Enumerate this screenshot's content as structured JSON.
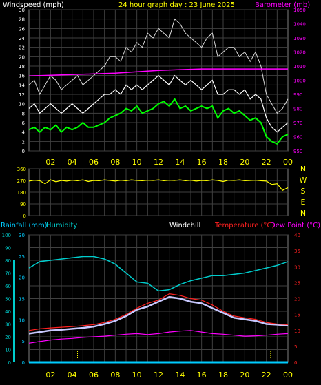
{
  "colors": {
    "background": "#000000",
    "grid": "#404040",
    "axis_text": "#ffffff",
    "xtick_text": "#ffff00",
    "windspeed": "#ffffff",
    "windgust": "#dcdcdc",
    "windavg": "#00ff00",
    "barometer": "#ff00ff",
    "direction": "#ffff00",
    "humidity": "#00cccc",
    "rainfall": "#00ccff",
    "windchill": "#c8c8ff",
    "temperature": "#ff2020",
    "dewpoint": "#ff00ff"
  },
  "chart_data": [
    {
      "type": "line",
      "panel": "wind_barometer",
      "title": "24 hour graph day : 23 June 2025",
      "left_axis_label": "Windspeed (mph)",
      "right_axis_label": "Barometer (mb)",
      "x_tick_labels": [
        "02",
        "04",
        "06",
        "08",
        "10",
        "12",
        "14",
        "16",
        "18",
        "20",
        "22",
        "00"
      ],
      "x_range_hours": [
        0,
        24
      ],
      "left_ylim": [
        0,
        30
      ],
      "left_ticks": [
        "0",
        "2",
        "4",
        "6",
        "8",
        "10",
        "12",
        "14",
        "16",
        "18",
        "20",
        "22",
        "24",
        "26",
        "28",
        "30"
      ],
      "right_ylim": [
        950,
        1050
      ],
      "right_ticks": [
        "950",
        "960",
        "970",
        "980",
        "990",
        "1000",
        "1010",
        "1020",
        "1030",
        "1040",
        "1050"
      ],
      "grid": true,
      "series": [
        {
          "key": "gust",
          "axis": "left",
          "hours": [
            0,
            0.5,
            1,
            1.5,
            2,
            2.5,
            3,
            3.5,
            4,
            4.5,
            5,
            5.5,
            6,
            6.5,
            7,
            7.5,
            8,
            8.5,
            9,
            9.5,
            10,
            10.5,
            11,
            11.5,
            12,
            12.5,
            13,
            13.5,
            14,
            14.5,
            15,
            15.5,
            16,
            16.5,
            17,
            17.5,
            18,
            18.5,
            19,
            19.5,
            20,
            20.5,
            21,
            21.5,
            22,
            22.5,
            23,
            23.5,
            24
          ],
          "values": [
            14,
            15,
            12,
            14,
            16,
            15,
            13,
            14,
            15,
            16,
            14,
            15,
            16,
            17,
            18,
            20,
            20,
            19,
            22,
            21,
            23,
            22,
            25,
            24,
            26,
            25,
            24,
            28,
            27,
            25,
            24,
            23,
            22,
            24,
            25,
            20,
            21,
            22,
            22,
            20,
            21,
            19,
            21,
            18,
            12,
            10,
            8,
            9,
            11
          ]
        },
        {
          "key": "speed",
          "axis": "left",
          "hours": [
            0,
            0.5,
            1,
            1.5,
            2,
            2.5,
            3,
            3.5,
            4,
            4.5,
            5,
            5.5,
            6,
            6.5,
            7,
            7.5,
            8,
            8.5,
            9,
            9.5,
            10,
            10.5,
            11,
            11.5,
            12,
            12.5,
            13,
            13.5,
            14,
            14.5,
            15,
            15.5,
            16,
            16.5,
            17,
            17.5,
            18,
            18.5,
            19,
            19.5,
            20,
            20.5,
            21,
            21.5,
            22,
            22.5,
            23,
            23.5,
            24
          ],
          "values": [
            9,
            10,
            8,
            9,
            10,
            9,
            8,
            9,
            10,
            9,
            8,
            9,
            10,
            11,
            12,
            12,
            13,
            12,
            14,
            13,
            14,
            13,
            14,
            15,
            16,
            15,
            14,
            16,
            15,
            14,
            15,
            14,
            13,
            14,
            15,
            12,
            12,
            13,
            13,
            12,
            13,
            11,
            12,
            11,
            7,
            5,
            4,
            5,
            6
          ]
        },
        {
          "key": "average",
          "axis": "left",
          "hours": [
            0,
            0.5,
            1,
            1.5,
            2,
            2.5,
            3,
            3.5,
            4,
            4.5,
            5,
            5.5,
            6,
            6.5,
            7,
            7.5,
            8,
            8.5,
            9,
            9.5,
            10,
            10.5,
            11,
            11.5,
            12,
            12.5,
            13,
            13.5,
            14,
            14.5,
            15,
            15.5,
            16,
            16.5,
            17,
            17.5,
            18,
            18.5,
            19,
            19.5,
            20,
            20.5,
            21,
            21.5,
            22,
            22.5,
            23,
            23.5,
            24
          ],
          "values": [
            4.5,
            5,
            4,
            5,
            4.5,
            5.5,
            4,
            5,
            4.5,
            5,
            6,
            5,
            5,
            5.5,
            6,
            7,
            7.5,
            8,
            9,
            8.5,
            9.5,
            8,
            8.5,
            9,
            10,
            10.5,
            9.5,
            11,
            9,
            9.5,
            8.5,
            9,
            9.5,
            9,
            9.5,
            7,
            8.5,
            9,
            8,
            8.5,
            7.5,
            6.5,
            7,
            6,
            3,
            2,
            1.5,
            3,
            3.5
          ]
        },
        {
          "key": "barometer",
          "axis": "right",
          "hours": [
            0,
            2,
            4,
            6,
            8,
            10,
            12,
            14,
            16,
            18,
            20,
            22,
            24
          ],
          "values": [
            1003,
            1003.5,
            1004,
            1004.5,
            1005,
            1006,
            1007,
            1007.5,
            1008,
            1008,
            1008,
            1008,
            1008
          ]
        }
      ]
    },
    {
      "type": "line",
      "panel": "wind_direction",
      "left_ticks": [
        "0",
        "90",
        "180",
        "270",
        "360"
      ],
      "left_ylim": [
        0,
        360
      ],
      "right_labels": [
        "N",
        "W",
        "S",
        "E",
        "N"
      ],
      "x_range_hours": [
        0,
        24
      ],
      "grid": true,
      "series": [
        {
          "key": "direction",
          "hours": [
            0,
            0.5,
            1,
            1.5,
            2,
            2.5,
            3,
            3.5,
            4,
            4.5,
            5,
            5.5,
            6,
            6.5,
            7,
            7.5,
            8,
            8.5,
            9,
            9.5,
            10,
            10.5,
            11,
            11.5,
            12,
            12.5,
            13,
            13.5,
            14,
            14.5,
            15,
            15.5,
            16,
            16.5,
            17,
            17.5,
            18,
            18.5,
            19,
            19.5,
            20,
            20.5,
            21,
            21.5,
            22,
            22.5,
            23,
            23.5,
            24
          ],
          "values": [
            265,
            272,
            268,
            245,
            275,
            260,
            270,
            265,
            272,
            268,
            275,
            262,
            270,
            268,
            275,
            270,
            265,
            272,
            268,
            275,
            270,
            268,
            272,
            270,
            275,
            268,
            272,
            270,
            275,
            268,
            272,
            265,
            270,
            268,
            275,
            270,
            262,
            272,
            270,
            275,
            268,
            270,
            272,
            268,
            265,
            240,
            245,
            195,
            215
          ]
        }
      ]
    },
    {
      "type": "line",
      "panel": "temperature_humidity_rain",
      "labels": {
        "rainfall": "Rainfall (mm)",
        "humidity": "Humidity",
        "windchill": "Windchill",
        "temperature": "Temperature (°C)",
        "dewpoint": "Dew Point (°C)"
      },
      "x_tick_labels": [
        "02",
        "04",
        "06",
        "08",
        "10",
        "12",
        "14",
        "16",
        "18",
        "20",
        "22",
        "00"
      ],
      "x_range_hours": [
        0,
        24
      ],
      "humidity_ylim": [
        0,
        100
      ],
      "humidity_ticks": [
        "0",
        "10",
        "20",
        "30",
        "40",
        "50",
        "60",
        "70",
        "80",
        "90",
        "100"
      ],
      "rain_ylim": [
        0,
        30
      ],
      "rain_ticks": [
        "0",
        "5",
        "10",
        "15",
        "20",
        "25",
        "30"
      ],
      "temp_ylim": [
        0,
        40
      ],
      "temp_ticks": [
        "0",
        "5",
        "10",
        "15",
        "20",
        "25",
        "30",
        "35",
        "40"
      ],
      "grid": true,
      "series": [
        {
          "key": "humidity",
          "axis": "humidity",
          "hours": [
            0,
            1,
            2,
            3,
            4,
            5,
            6,
            7,
            8,
            9,
            10,
            11,
            12,
            13,
            14,
            15,
            16,
            17,
            18,
            19,
            20,
            21,
            22,
            23,
            24
          ],
          "values": [
            74,
            79,
            80,
            81,
            82,
            83,
            83,
            81,
            77,
            70,
            63,
            62,
            56,
            57,
            61,
            64,
            66,
            68,
            68,
            69,
            70,
            72,
            74,
            76,
            79
          ]
        },
        {
          "key": "temperature",
          "axis": "temp",
          "hours": [
            0,
            1,
            2,
            3,
            4,
            5,
            6,
            7,
            8,
            9,
            10,
            11,
            12,
            13,
            14,
            15,
            16,
            17,
            18,
            19,
            20,
            21,
            22,
            23,
            24
          ],
          "values": [
            10,
            10.5,
            10.8,
            11,
            11.2,
            11.5,
            11.8,
            12.5,
            13.5,
            15,
            17,
            18.5,
            19.5,
            21.5,
            21,
            20,
            19.5,
            18,
            16,
            14.5,
            14,
            13.5,
            12.5,
            12,
            11.8
          ]
        },
        {
          "key": "windchill",
          "axis": "temp",
          "hours": [
            0,
            1,
            2,
            3,
            4,
            5,
            6,
            7,
            8,
            9,
            10,
            11,
            12,
            13,
            14,
            15,
            16,
            17,
            18,
            19,
            20,
            21,
            22,
            23,
            24
          ],
          "values": [
            9,
            9.5,
            10,
            10.2,
            10.5,
            10.8,
            11.2,
            12,
            13,
            14.5,
            16.5,
            17.5,
            19,
            20.5,
            20,
            19,
            18.5,
            17,
            15.5,
            14,
            13.5,
            13,
            12,
            11.8,
            11.5
          ]
        },
        {
          "key": "dewpoint",
          "axis": "temp",
          "hours": [
            0,
            1,
            2,
            3,
            4,
            5,
            6,
            7,
            8,
            9,
            10,
            11,
            12,
            13,
            14,
            15,
            16,
            17,
            18,
            19,
            20,
            21,
            22,
            23,
            24
          ],
          "values": [
            6,
            6.5,
            7,
            7.3,
            7.5,
            7.8,
            8,
            8.2,
            8.5,
            8.8,
            9,
            8.7,
            9,
            9.5,
            9.8,
            10,
            9.5,
            9,
            8.8,
            8.5,
            8.2,
            8.3,
            8.5,
            8.8,
            9
          ]
        },
        {
          "key": "rainfall",
          "axis": "rain",
          "hours": [
            0,
            24
          ],
          "values": [
            0,
            0
          ]
        }
      ],
      "rain_markers_hours": [
        4.5,
        22.4
      ]
    }
  ]
}
